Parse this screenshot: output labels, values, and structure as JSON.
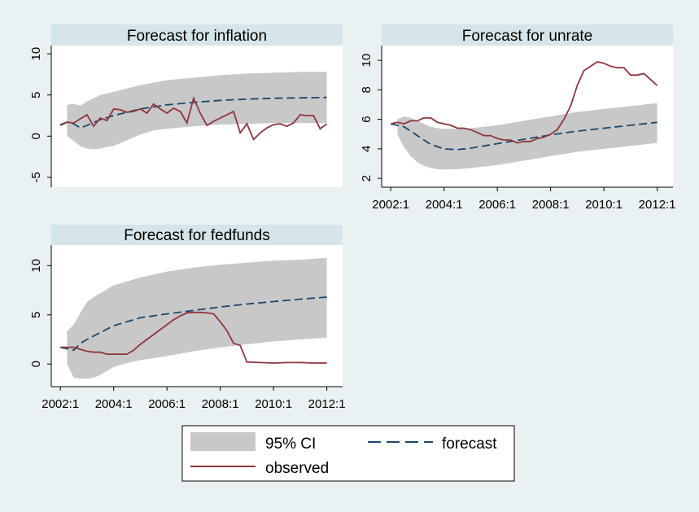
{
  "style": {
    "background": "#eaf1f3",
    "panel_background": "#ffffff",
    "title_strip": "#d6e5ea",
    "ci_color": "#c8c8c8",
    "forecast_color": "#1a476f",
    "observed_color": "#90353b",
    "axis_color": "#000000"
  },
  "legend": {
    "ci_label": "95% CI",
    "forecast_label": "forecast",
    "observed_label": "observed"
  },
  "chart_data": [
    {
      "type": "line",
      "title": "Forecast for inflation",
      "x_tick_labels": [],
      "y_ticks": [
        -5,
        0,
        5,
        10
      ],
      "y_tick_labels": [
        "-5",
        "0",
        "5",
        "10"
      ],
      "ylim": [
        -6.2,
        11
      ],
      "xlim": [
        2001.75,
        2012.5
      ],
      "grid": false,
      "series": [
        {
          "role": "ci",
          "x": [
            2002.25,
            2002.5,
            2002.75,
            2003,
            2003.25,
            2003.5,
            2003.75,
            2004,
            2004.5,
            2005,
            2005.5,
            2006,
            2007,
            2008,
            2009,
            2010,
            2011,
            2012
          ],
          "upper": [
            3.8,
            3.9,
            3.7,
            4.2,
            4.6,
            5.0,
            5.2,
            5.4,
            5.8,
            6.2,
            6.5,
            6.8,
            7.1,
            7.4,
            7.6,
            7.7,
            7.8,
            7.8
          ],
          "lower": [
            0.0,
            -0.6,
            -1.2,
            -1.5,
            -1.6,
            -1.5,
            -1.3,
            -1.2,
            -0.5,
            0.2,
            0.7,
            0.9,
            1.2,
            1.4,
            1.5,
            1.6,
            1.6,
            1.6
          ]
        },
        {
          "role": "forecast",
          "x": [
            2002,
            2002.25,
            2002.5,
            2002.75,
            2003,
            2003.5,
            2004,
            2004.5,
            2005,
            2006,
            2007,
            2008,
            2009,
            2010,
            2011,
            2012
          ],
          "y": [
            1.4,
            1.7,
            1.5,
            1.0,
            1.3,
            2.0,
            2.5,
            2.9,
            3.3,
            3.8,
            4.1,
            4.35,
            4.5,
            4.6,
            4.65,
            4.7
          ]
        },
        {
          "role": "observed",
          "x": [
            2002,
            2002.25,
            2002.5,
            2002.75,
            2003,
            2003.25,
            2003.5,
            2003.75,
            2004,
            2004.25,
            2004.5,
            2004.75,
            2005,
            2005.25,
            2005.5,
            2005.75,
            2006,
            2006.25,
            2006.5,
            2006.75,
            2007,
            2007.25,
            2007.5,
            2007.75,
            2008,
            2008.25,
            2008.5,
            2008.75,
            2009,
            2009.25,
            2009.5,
            2009.75,
            2010,
            2010.25,
            2010.5,
            2010.75,
            2011,
            2011.25,
            2011.5,
            2011.75,
            2012
          ],
          "y": [
            1.3,
            1.7,
            1.6,
            2.1,
            2.6,
            1.2,
            2.2,
            1.9,
            3.3,
            3.2,
            2.9,
            3.0,
            3.3,
            2.8,
            3.9,
            3.3,
            2.8,
            3.4,
            3.0,
            1.6,
            4.6,
            2.8,
            1.3,
            1.8,
            2.2,
            2.6,
            3.0,
            0.4,
            1.5,
            -0.4,
            0.4,
            1.0,
            1.4,
            1.5,
            1.2,
            1.6,
            2.6,
            2.5,
            2.5,
            0.9,
            1.5
          ]
        }
      ]
    },
    {
      "type": "line",
      "title": "Forecast for unrate",
      "x_tick_labels": [
        "2002:1",
        "2004:1",
        "2006:1",
        "2008:1",
        "2010:1",
        "2012:1"
      ],
      "y_ticks": [
        2,
        4,
        6,
        8,
        10
      ],
      "y_tick_labels": [
        "2",
        "4",
        "6",
        "8",
        "10"
      ],
      "ylim": [
        1.4,
        11
      ],
      "xlim": [
        2001.75,
        2012.5
      ],
      "grid": false,
      "series": [
        {
          "role": "ci",
          "x": [
            2002.25,
            2002.5,
            2002.75,
            2003,
            2003.25,
            2003.5,
            2003.75,
            2004,
            2004.5,
            2005,
            2005.5,
            2006,
            2007,
            2008,
            2009,
            2010,
            2011,
            2012
          ],
          "upper": [
            6.0,
            6.2,
            6.1,
            5.9,
            5.7,
            5.5,
            5.4,
            5.35,
            5.35,
            5.4,
            5.5,
            5.6,
            5.9,
            6.2,
            6.5,
            6.7,
            6.9,
            7.1
          ],
          "lower": [
            5.0,
            4.1,
            3.5,
            3.1,
            2.85,
            2.7,
            2.62,
            2.6,
            2.62,
            2.7,
            2.8,
            2.9,
            3.2,
            3.5,
            3.8,
            4.0,
            4.2,
            4.4
          ]
        },
        {
          "role": "forecast",
          "x": [
            2002,
            2002.5,
            2003,
            2003.5,
            2004,
            2004.5,
            2005,
            2006,
            2007,
            2008,
            2009,
            2010,
            2011,
            2012
          ],
          "y": [
            5.7,
            5.5,
            4.9,
            4.3,
            4.0,
            3.95,
            4.05,
            4.35,
            4.65,
            4.95,
            5.2,
            5.4,
            5.6,
            5.8
          ]
        },
        {
          "role": "observed",
          "x": [
            2002,
            2002.25,
            2002.5,
            2002.75,
            2003,
            2003.25,
            2003.5,
            2003.75,
            2004,
            2004.25,
            2004.5,
            2004.75,
            2005,
            2005.25,
            2005.5,
            2005.75,
            2006,
            2006.25,
            2006.5,
            2006.75,
            2007,
            2007.25,
            2007.5,
            2007.75,
            2008,
            2008.25,
            2008.5,
            2008.75,
            2009,
            2009.25,
            2009.5,
            2009.75,
            2010,
            2010.25,
            2010.5,
            2010.75,
            2011,
            2011.25,
            2011.5,
            2011.75,
            2012
          ],
          "y": [
            5.7,
            5.8,
            5.7,
            5.9,
            5.9,
            6.1,
            6.1,
            5.8,
            5.7,
            5.6,
            5.4,
            5.4,
            5.3,
            5.1,
            4.9,
            4.9,
            4.7,
            4.6,
            4.6,
            4.4,
            4.5,
            4.5,
            4.7,
            4.8,
            5.0,
            5.3,
            6.0,
            6.9,
            8.3,
            9.3,
            9.6,
            9.9,
            9.8,
            9.6,
            9.5,
            9.5,
            9.0,
            9.0,
            9.1,
            8.7,
            8.3
          ]
        }
      ]
    },
    {
      "type": "line",
      "title": "Forecast for fedfunds",
      "x_tick_labels": [
        "2002:1",
        "2004:1",
        "2006:1",
        "2008:1",
        "2010:1",
        "2012:1"
      ],
      "y_ticks": [
        0,
        5,
        10
      ],
      "y_tick_labels": [
        "0",
        "5",
        "10"
      ],
      "ylim": [
        -2.3,
        12.1
      ],
      "xlim": [
        2001.75,
        2012.5
      ],
      "grid": false,
      "series": [
        {
          "role": "ci",
          "x": [
            2002.25,
            2002.5,
            2002.75,
            2003,
            2003.25,
            2003.5,
            2003.75,
            2004,
            2004.5,
            2005,
            2005.5,
            2006,
            2007,
            2008,
            2009,
            2010,
            2011,
            2012
          ],
          "upper": [
            3.3,
            4.0,
            5.2,
            6.3,
            6.8,
            7.2,
            7.6,
            8.0,
            8.4,
            8.8,
            9.1,
            9.4,
            9.8,
            10.1,
            10.3,
            10.5,
            10.6,
            10.8
          ],
          "lower": [
            0.0,
            -1.4,
            -1.5,
            -1.5,
            -1.4,
            -1.1,
            -0.7,
            -0.3,
            0.1,
            0.4,
            0.6,
            0.8,
            1.3,
            1.7,
            2.0,
            2.3,
            2.5,
            2.7
          ]
        },
        {
          "role": "forecast",
          "x": [
            2002,
            2002.5,
            2002.75,
            2003,
            2003.5,
            2004,
            2004.5,
            2005,
            2006,
            2007,
            2008,
            2009,
            2010,
            2011,
            2012
          ],
          "y": [
            1.7,
            1.4,
            2.1,
            2.5,
            3.2,
            3.9,
            4.3,
            4.7,
            5.1,
            5.45,
            5.8,
            6.1,
            6.35,
            6.6,
            6.8
          ]
        },
        {
          "role": "observed",
          "x": [
            2002,
            2002.25,
            2002.5,
            2002.75,
            2003,
            2003.25,
            2003.5,
            2003.75,
            2004,
            2004.25,
            2004.5,
            2004.75,
            2005,
            2005.25,
            2005.5,
            2005.75,
            2006,
            2006.25,
            2006.5,
            2006.75,
            2007,
            2007.25,
            2007.5,
            2007.75,
            2008,
            2008.25,
            2008.5,
            2008.75,
            2009,
            2009.5,
            2010,
            2010.5,
            2011,
            2011.5,
            2012
          ],
          "y": [
            1.7,
            1.7,
            1.7,
            1.5,
            1.3,
            1.2,
            1.2,
            1.0,
            1.0,
            1.0,
            1.0,
            1.4,
            2.0,
            2.5,
            3.0,
            3.5,
            4.0,
            4.5,
            4.9,
            5.2,
            5.25,
            5.25,
            5.2,
            5.1,
            4.3,
            3.4,
            2.1,
            1.9,
            0.2,
            0.15,
            0.1,
            0.15,
            0.15,
            0.1,
            0.1
          ]
        }
      ]
    }
  ]
}
